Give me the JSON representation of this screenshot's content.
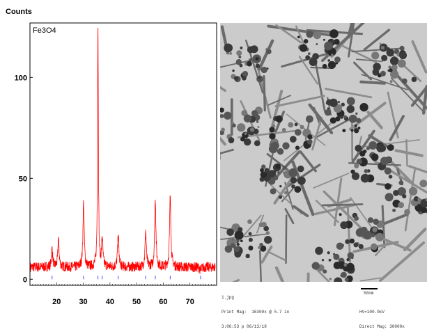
{
  "chart_data": {
    "type": "line",
    "ylabel": "Counts",
    "series_label": "Fe3O4",
    "x_ticks": [
      20,
      30,
      40,
      50,
      60,
      70
    ],
    "y_ticks": [
      0,
      50,
      100
    ],
    "xlim": [
      10,
      80
    ],
    "ylim": [
      -3,
      127
    ],
    "peaks": [
      {
        "x": 18.3,
        "y": 15
      },
      {
        "x": 20.7,
        "y": 20
      },
      {
        "x": 30.1,
        "y": 38
      },
      {
        "x": 35.5,
        "y": 127
      },
      {
        "x": 37.1,
        "y": 20
      },
      {
        "x": 43.1,
        "y": 22
      },
      {
        "x": 53.4,
        "y": 24
      },
      {
        "x": 57.0,
        "y": 40
      },
      {
        "x": 62.6,
        "y": 42
      },
      {
        "x": 74.0,
        "y": 4
      }
    ],
    "reference_lines_x": [
      18.3,
      30.1,
      35.5,
      37.1,
      43.1,
      53.4,
      57.0,
      62.6,
      74.0
    ],
    "colors": {
      "pattern": "#ff0000",
      "reference": "#4a4aff",
      "frame": "#000000"
    }
  },
  "micrograph": {
    "footer_left": [
      "1.jpg",
      "Print Mag:  16300x @ 5.7 in",
      "3:06:53 p 06/13/18"
    ],
    "scale_label": "50nm",
    "footer_right": [
      "HV=100.0kV",
      "Direct Mag: 30000x"
    ]
  }
}
